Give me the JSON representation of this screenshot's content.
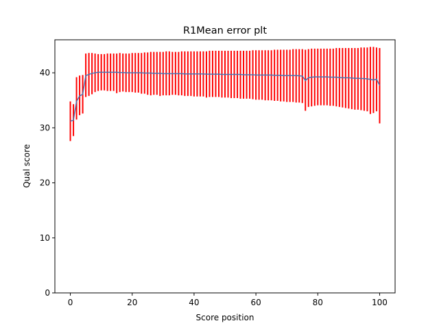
{
  "chart_data": {
    "type": "line",
    "title": "R1Mean error plt",
    "xlabel": "Score position",
    "ylabel": "Qual score",
    "xlim": [
      -5,
      105
    ],
    "ylim": [
      0,
      46
    ],
    "xticks": [
      0,
      20,
      40,
      60,
      80,
      100
    ],
    "yticks": [
      0,
      10,
      20,
      30,
      40
    ],
    "grid": false,
    "colors": {
      "line": "#4c72b0",
      "errorbar": "#ff0000"
    },
    "series": [
      {
        "x": [
          0,
          1,
          2,
          3,
          4,
          5,
          6,
          7,
          8,
          9,
          10,
          11,
          12,
          13,
          14,
          15,
          16,
          17,
          18,
          19,
          20,
          21,
          22,
          23,
          24,
          25,
          26,
          27,
          28,
          29,
          30,
          31,
          32,
          33,
          34,
          35,
          36,
          37,
          38,
          39,
          40,
          41,
          42,
          43,
          44,
          45,
          46,
          47,
          48,
          49,
          50,
          51,
          52,
          53,
          54,
          55,
          56,
          57,
          58,
          59,
          60,
          61,
          62,
          63,
          64,
          65,
          66,
          67,
          68,
          69,
          70,
          71,
          72,
          73,
          74,
          75,
          76,
          77,
          78,
          79,
          80,
          81,
          82,
          83,
          84,
          85,
          86,
          87,
          88,
          89,
          90,
          91,
          92,
          93,
          94,
          95,
          96,
          97,
          98,
          99,
          100
        ],
        "mean": [
          31.2,
          31.4,
          34.8,
          35.8,
          36.1,
          39.5,
          39.7,
          39.9,
          40.0,
          40.1,
          40.1,
          40.1,
          40.1,
          40.1,
          40.1,
          40.1,
          40.05,
          40.05,
          40.0,
          40.0,
          40.0,
          40.0,
          40.0,
          40.0,
          39.95,
          39.95,
          39.95,
          39.9,
          39.9,
          39.9,
          39.85,
          39.85,
          39.85,
          39.85,
          39.85,
          39.85,
          39.85,
          39.8,
          39.8,
          39.8,
          39.8,
          39.8,
          39.8,
          39.8,
          39.75,
          39.75,
          39.75,
          39.75,
          39.75,
          39.7,
          39.7,
          39.7,
          39.7,
          39.7,
          39.7,
          39.7,
          39.65,
          39.65,
          39.65,
          39.65,
          39.6,
          39.6,
          39.6,
          39.6,
          39.6,
          39.6,
          39.55,
          39.55,
          39.55,
          39.5,
          39.5,
          39.5,
          39.5,
          39.5,
          39.45,
          39.4,
          38.6,
          39.1,
          39.2,
          39.25,
          39.25,
          39.25,
          39.25,
          39.25,
          39.2,
          39.2,
          39.2,
          39.15,
          39.1,
          39.1,
          39.1,
          39.05,
          39.0,
          39.0,
          38.95,
          38.95,
          38.9,
          38.8,
          38.7,
          38.85,
          37.7
        ],
        "upper": [
          34.8,
          34.3,
          39.2,
          39.5,
          39.6,
          43.5,
          43.6,
          43.6,
          43.5,
          43.4,
          43.4,
          43.4,
          43.5,
          43.5,
          43.5,
          43.5,
          43.6,
          43.5,
          43.5,
          43.5,
          43.6,
          43.6,
          43.6,
          43.6,
          43.7,
          43.7,
          43.8,
          43.8,
          43.8,
          43.8,
          43.8,
          43.9,
          43.9,
          43.8,
          43.8,
          43.8,
          43.9,
          43.9,
          43.9,
          43.9,
          43.9,
          43.9,
          43.9,
          43.9,
          43.9,
          44.0,
          44.0,
          44.0,
          44.0,
          44.0,
          44.0,
          44.0,
          44.0,
          44.0,
          44.0,
          44.0,
          44.0,
          44.0,
          44.0,
          44.1,
          44.1,
          44.1,
          44.1,
          44.1,
          44.1,
          44.1,
          44.2,
          44.2,
          44.2,
          44.2,
          44.2,
          44.2,
          44.3,
          44.3,
          44.3,
          44.3,
          44.2,
          44.3,
          44.4,
          44.4,
          44.4,
          44.4,
          44.4,
          44.4,
          44.4,
          44.4,
          44.5,
          44.5,
          44.5,
          44.5,
          44.5,
          44.5,
          44.5,
          44.5,
          44.6,
          44.6,
          44.6,
          44.7,
          44.7,
          44.6,
          44.5
        ],
        "lower": [
          27.6,
          28.5,
          31.5,
          32.3,
          32.6,
          35.6,
          35.8,
          36.1,
          36.5,
          36.7,
          36.8,
          36.8,
          36.7,
          36.7,
          36.7,
          36.3,
          36.5,
          36.6,
          36.5,
          36.5,
          36.5,
          36.4,
          36.4,
          36.2,
          36.2,
          36.0,
          35.9,
          36.0,
          36.0,
          35.8,
          35.9,
          35.9,
          35.9,
          36.0,
          36.0,
          35.9,
          35.9,
          35.8,
          35.8,
          35.8,
          35.7,
          35.7,
          35.7,
          35.7,
          35.5,
          35.6,
          35.6,
          35.6,
          35.6,
          35.5,
          35.5,
          35.5,
          35.4,
          35.4,
          35.4,
          35.3,
          35.3,
          35.3,
          35.3,
          35.2,
          35.1,
          35.1,
          35.1,
          35.0,
          35.0,
          35.0,
          34.9,
          34.9,
          34.8,
          34.8,
          34.7,
          34.7,
          34.7,
          34.6,
          34.6,
          34.5,
          33.1,
          33.8,
          33.9,
          34.0,
          34.1,
          34.1,
          34.1,
          34.1,
          34.0,
          34.0,
          33.9,
          33.8,
          33.7,
          33.6,
          33.5,
          33.4,
          33.3,
          33.3,
          33.2,
          33.1,
          33.0,
          32.5,
          32.7,
          33.0,
          30.8
        ]
      }
    ]
  }
}
